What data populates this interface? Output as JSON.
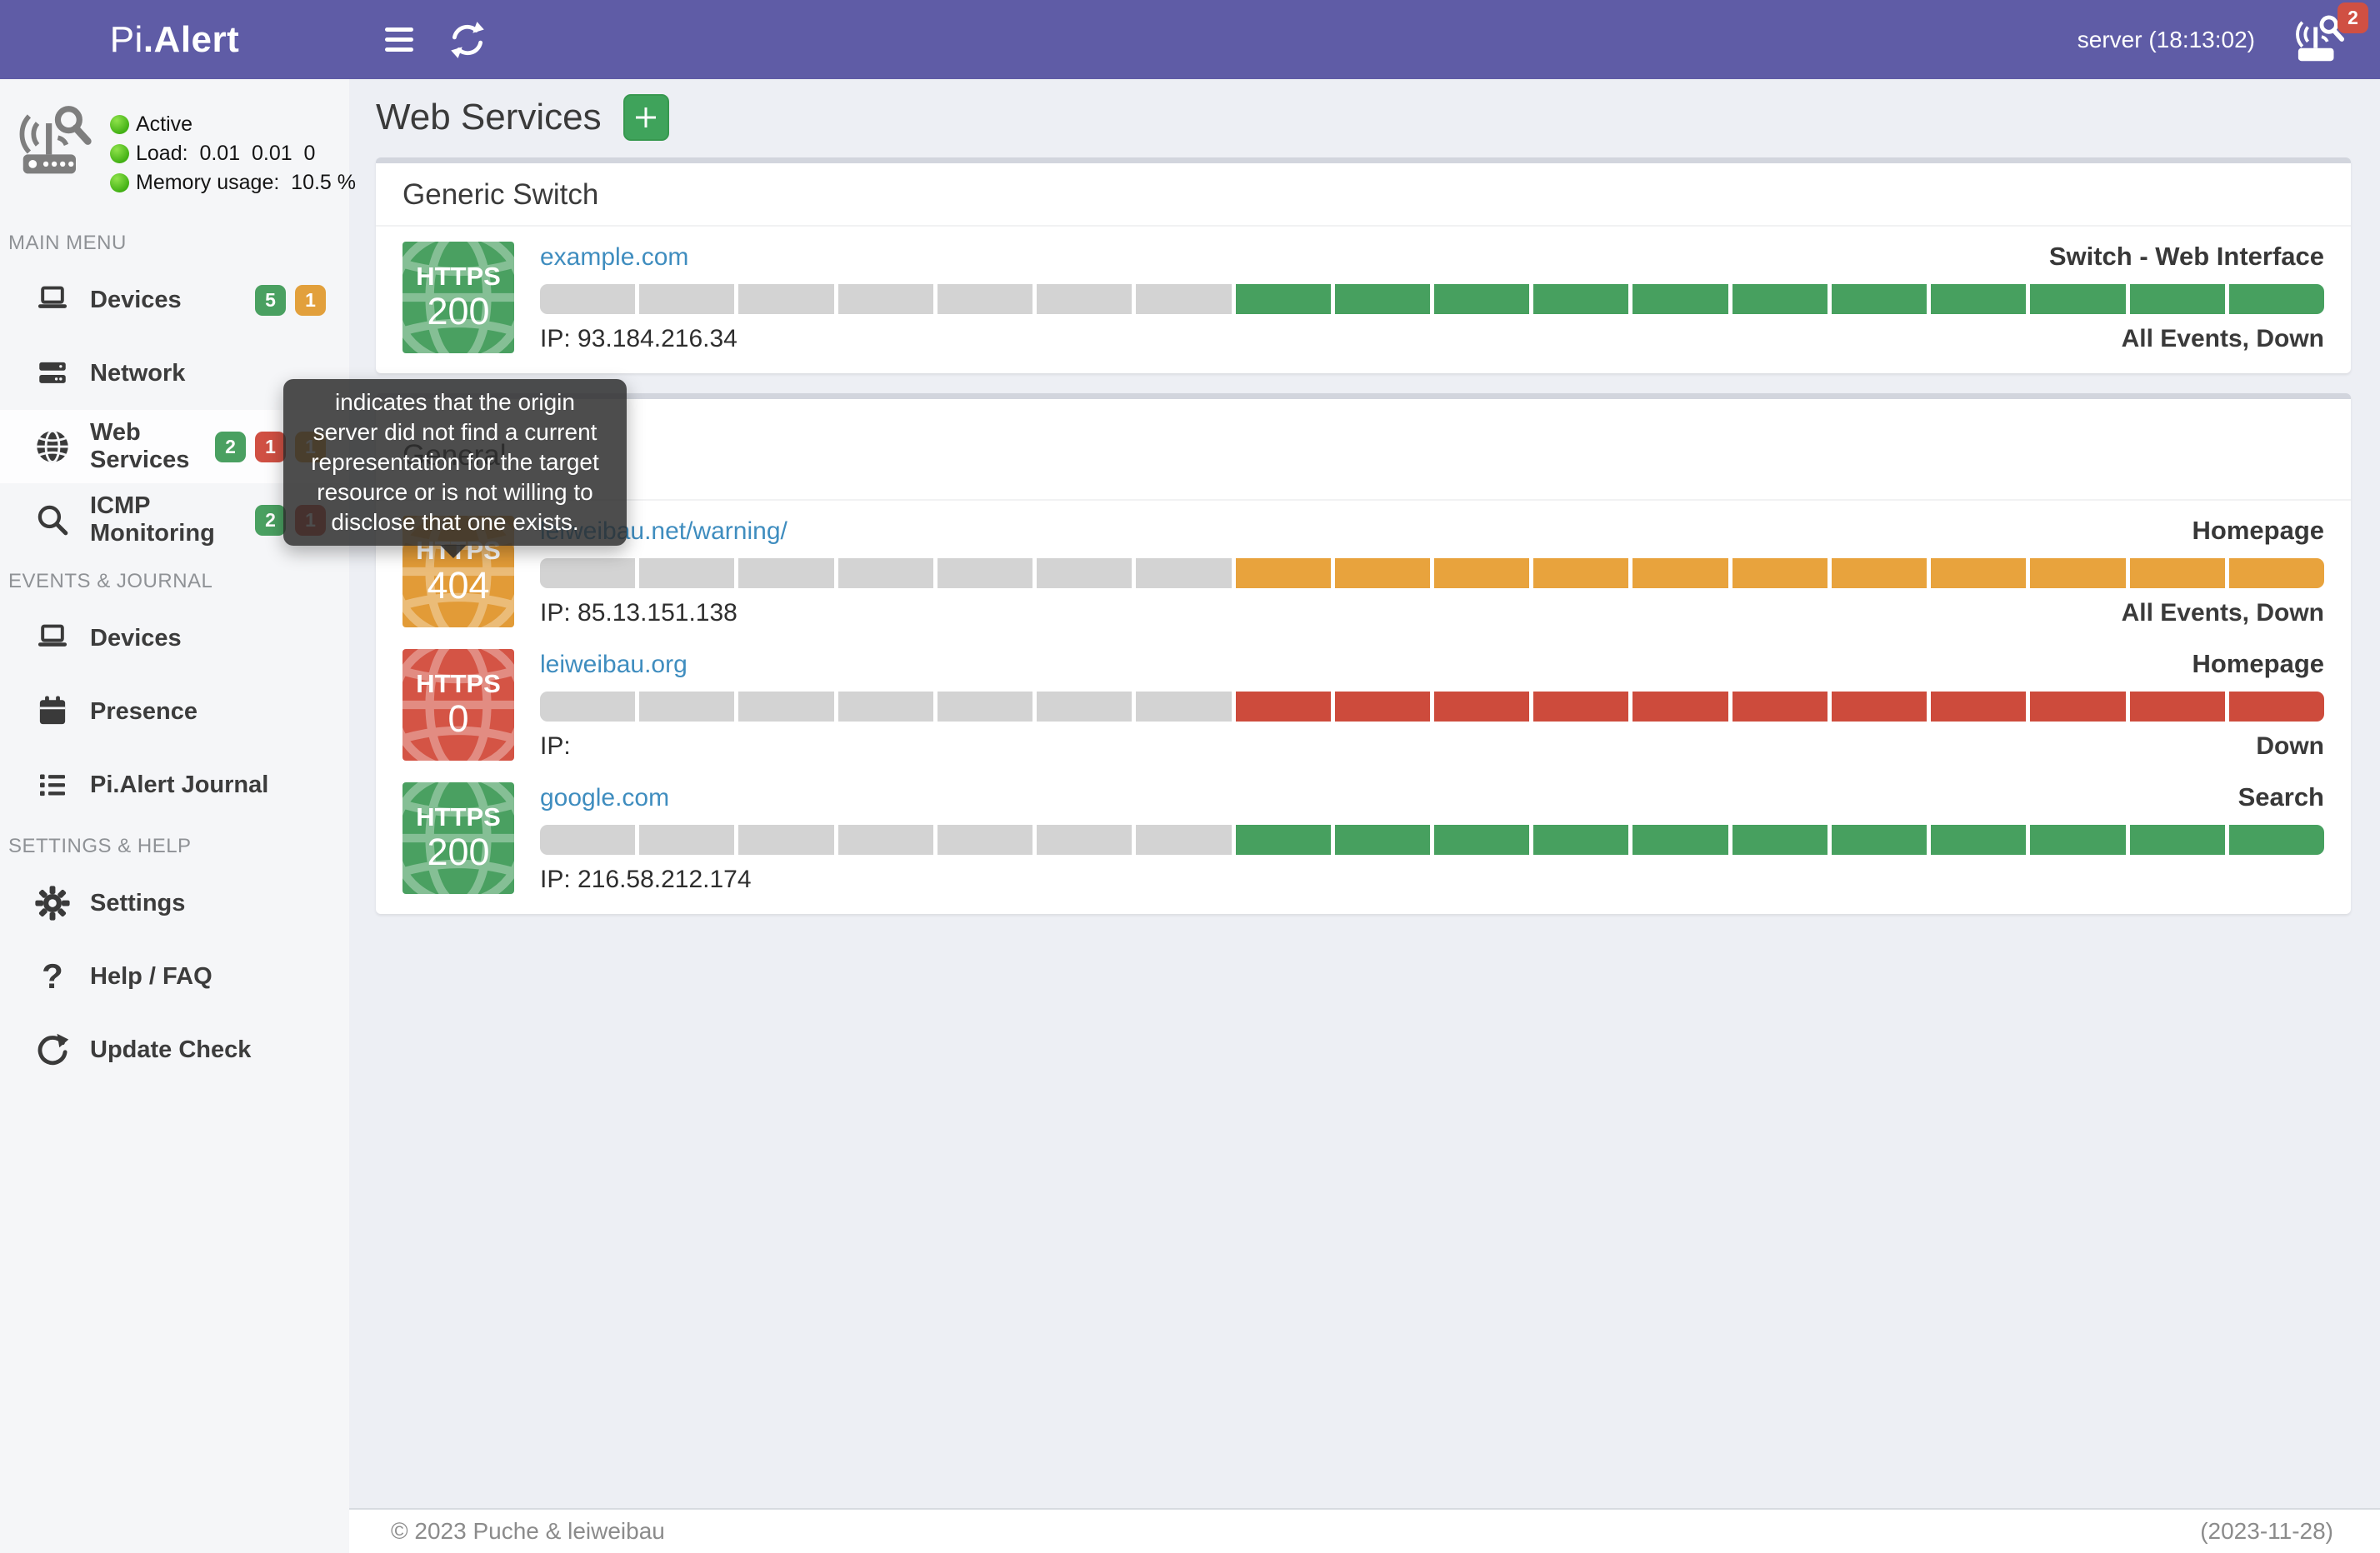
{
  "colors": {
    "header_purple": "#5f5ca6",
    "content_bg": "#edeff4",
    "sidebar_bg": "#f5f6f8",
    "green": "#4aa061",
    "orange": "#e2a03c",
    "red": "#d05043",
    "link_blue": "#3f8dbf",
    "bar_gray": "#d3d3d3"
  },
  "header": {
    "brand_thin": "Pi",
    "brand_bold": ".Alert",
    "menu_icon": "hamburger-icon",
    "refresh_icon": "refresh-icon",
    "server_label": "server (18:13:02)",
    "notification_icon": "router-scan-icon",
    "notification_count": "2"
  },
  "sidebar": {
    "status": {
      "icon": "router-scan-icon",
      "lines": [
        "Active",
        "Load:  0.01  0.01  0",
        "Memory usage:  10.5 %"
      ]
    },
    "sections": [
      {
        "heading": "MAIN MENU",
        "items": [
          {
            "label": "Devices",
            "icon": "laptop-icon",
            "badges": [
              {
                "text": "5",
                "color": "green"
              },
              {
                "text": "1",
                "color": "orange"
              }
            ]
          },
          {
            "label": "Network",
            "icon": "server-icon",
            "badges": []
          },
          {
            "label": "Web Services",
            "icon": "globe-icon",
            "active": true,
            "badges": [
              {
                "text": "2",
                "color": "green"
              },
              {
                "text": "1",
                "color": "red"
              },
              {
                "text": "1",
                "color": "orange"
              }
            ]
          },
          {
            "label": "ICMP Monitoring",
            "icon": "magnifier-icon",
            "badges": [
              {
                "text": "2",
                "color": "green"
              },
              {
                "text": "1",
                "color": "red"
              }
            ]
          }
        ]
      },
      {
        "heading": "EVENTS & JOURNAL",
        "items": [
          {
            "label": "Devices",
            "icon": "laptop-icon",
            "badges": []
          },
          {
            "label": "Presence",
            "icon": "calendar-icon",
            "badges": []
          },
          {
            "label": "Pi.Alert Journal",
            "icon": "list-icon",
            "badges": []
          }
        ]
      },
      {
        "heading": "SETTINGS & HELP",
        "items": [
          {
            "label": "Settings",
            "icon": "gear-icon",
            "badges": []
          },
          {
            "label": "Help / FAQ",
            "icon": "question-icon",
            "badges": []
          },
          {
            "label": "Update Check",
            "icon": "refresh-icon",
            "badges": []
          }
        ]
      }
    ]
  },
  "main": {
    "title": "Web Services",
    "add_button_icon": "plus-icon",
    "cards": [
      {
        "title": "Generic Switch",
        "rows": [
          {
            "protocol": "HTTPS",
            "code": "200",
            "state": "green",
            "url": "example.com",
            "name": "Switch - Web Interface",
            "ip": "IP: 93.184.216.34",
            "status": "All Events, Down",
            "bar": {
              "segments": 18,
              "gray": 7
            }
          }
        ]
      },
      {
        "title": "General",
        "rows": [
          {
            "protocol": "HTTPS",
            "code": "404",
            "state": "orange",
            "url": "leiweibau.net/warning/",
            "name": "Homepage",
            "ip": "IP: 85.13.151.138",
            "status": "All Events, Down",
            "bar": {
              "segments": 18,
              "gray": 7
            }
          },
          {
            "protocol": "HTTPS",
            "code": "0",
            "state": "red",
            "url": "leiweibau.org",
            "name": "Homepage",
            "ip": "IP:",
            "status": "Down",
            "bar": {
              "segments": 18,
              "gray": 7
            }
          },
          {
            "protocol": "HTTPS",
            "code": "200",
            "state": "green",
            "url": "google.com",
            "name": "Search",
            "ip": "IP: 216.58.212.174",
            "status": "",
            "bar": {
              "segments": 18,
              "gray": 7
            }
          }
        ]
      }
    ]
  },
  "tooltip": {
    "text": "indicates that the origin server did not find a current representation for the target resource or is not willing to disclose that one exists."
  },
  "footer": {
    "left": "© 2023 Puche & leiweibau",
    "right": "(2023-11-28)"
  }
}
